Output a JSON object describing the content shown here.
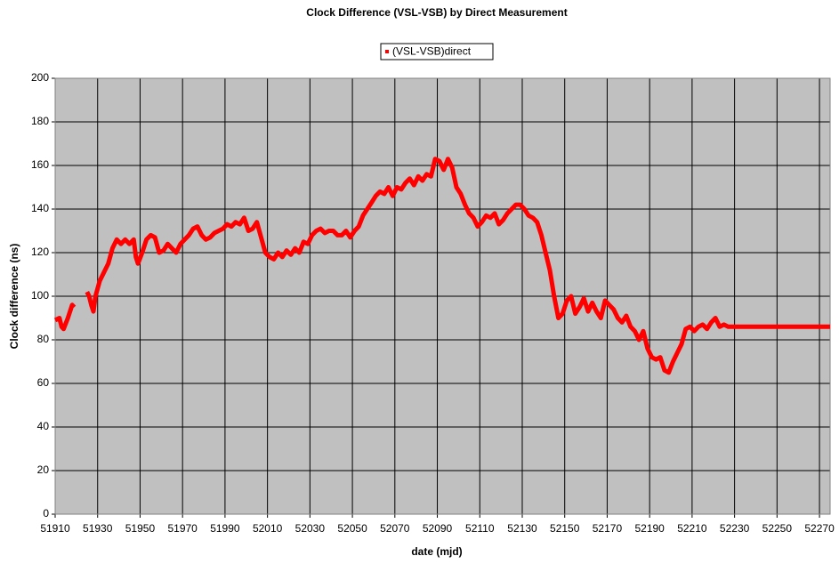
{
  "chart_data": {
    "type": "line",
    "title": "Clock Difference (VSL-VSB) by Direct Measurement",
    "x_label": "date (mjd)",
    "y_label": "Clock difference  (ns)",
    "legend": "top",
    "grid": true,
    "xlim": [
      51910,
      52275
    ],
    "ylim": [
      0,
      200
    ],
    "xticks": [
      51910,
      51930,
      51950,
      51970,
      51990,
      52010,
      52030,
      52050,
      52070,
      52090,
      52110,
      52130,
      52150,
      52170,
      52190,
      52210,
      52230,
      52250,
      52270
    ],
    "yticks": [
      0,
      20,
      40,
      60,
      80,
      100,
      120,
      140,
      160,
      180,
      200
    ],
    "x": [
      51910,
      51912,
      51913,
      51914,
      51916,
      51918,
      51919,
      51922,
      51925,
      51926,
      51927,
      51928,
      51929,
      51931,
      51933,
      51935,
      51937,
      51939,
      51941,
      51943,
      51945,
      51947,
      51948,
      51949,
      51951,
      51953,
      51955,
      51957,
      51959,
      51961,
      51963,
      51965,
      51967,
      51969,
      51971,
      51973,
      51975,
      51977,
      51979,
      51981,
      51983,
      51985,
      51987,
      51989,
      51991,
      51993,
      51995,
      51997,
      51999,
      52001,
      52003,
      52005,
      52007,
      52009,
      52011,
      52013,
      52015,
      52017,
      52019,
      52021,
      52023,
      52025,
      52027,
      52029,
      52031,
      52033,
      52035,
      52037,
      52039,
      52041,
      52043,
      52045,
      52047,
      52049,
      52051,
      52053,
      52055,
      52057,
      52059,
      52061,
      52063,
      52065,
      52067,
      52069,
      52071,
      52073,
      52075,
      52077,
      52079,
      52081,
      52083,
      52085,
      52087,
      52089,
      52091,
      52093,
      52095,
      52097,
      52099,
      52101,
      52103,
      52105,
      52107,
      52109,
      52111,
      52113,
      52115,
      52117,
      52119,
      52121,
      52123,
      52125,
      52127,
      52129,
      52131,
      52133,
      52135,
      52137,
      52139,
      52141,
      52143,
      52145,
      52147,
      52149,
      52151,
      52153,
      52155,
      52157,
      52159,
      52161,
      52163,
      52165,
      52167,
      52169,
      52171,
      52173,
      52175,
      52177,
      52179,
      52181,
      52183,
      52185,
      52187,
      52189,
      52191,
      52193,
      52195,
      52197,
      52199,
      52201,
      52203,
      52205,
      52207,
      52209,
      52211,
      52213,
      52215,
      52217,
      52219,
      52221,
      52223,
      52225,
      52227,
      52230,
      52240,
      52250,
      52260,
      52270,
      52275
    ],
    "series": [
      {
        "name": "(VSL-VSB)direct",
        "color": "#ff0000",
        "values": [
          89,
          90,
          86,
          85,
          90,
          96,
          95,
          null,
          102,
          100,
          96,
          93,
          100,
          107,
          111,
          115,
          122,
          126,
          124,
          126,
          124,
          126,
          118,
          115,
          120,
          126,
          128,
          127,
          120,
          121,
          124,
          122,
          120,
          124,
          126,
          128,
          131,
          132,
          128,
          126,
          127,
          129,
          130,
          131,
          133,
          132,
          134,
          133,
          136,
          130,
          131,
          134,
          127,
          120,
          118,
          117,
          120,
          118,
          121,
          119,
          122,
          120,
          125,
          124,
          128,
          130,
          131,
          129,
          130,
          130,
          128,
          128,
          130,
          127,
          130,
          132,
          137,
          140,
          143,
          146,
          148,
          147,
          150,
          146,
          150,
          149,
          152,
          154,
          151,
          155,
          153,
          156,
          155,
          163,
          162,
          158,
          163,
          159,
          150,
          147,
          142,
          138,
          136,
          132,
          134,
          137,
          136,
          138,
          133,
          135,
          138,
          140,
          142,
          142,
          140,
          137,
          136,
          134,
          128,
          120,
          112,
          100,
          90,
          92,
          98,
          100,
          92,
          95,
          99,
          93,
          97,
          93,
          90,
          98,
          96,
          94,
          90,
          88,
          91,
          86,
          84,
          80,
          84,
          76,
          72,
          71,
          72,
          66,
          65,
          70,
          74,
          78,
          85,
          86,
          84,
          86,
          87,
          85,
          88,
          90,
          86,
          87,
          86,
          86,
          86,
          86,
          86,
          86,
          86
        ]
      }
    ]
  }
}
